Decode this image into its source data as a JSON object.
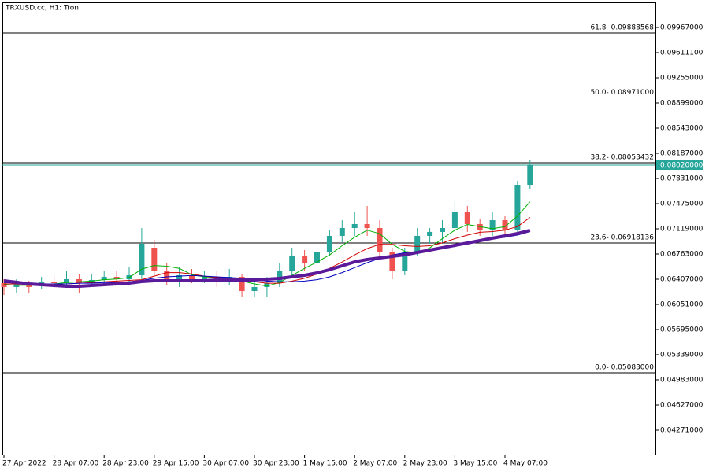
{
  "chart_data": {
    "type": "candlestick",
    "title": "TRXUSD.cc, H1:  Tron",
    "up_color": "#26a69a",
    "down_color": "#ef5350",
    "categories": [
      "27 Apr 2022",
      null,
      null,
      null,
      "28 Apr 07:00",
      null,
      null,
      null,
      "28 Apr 23:00",
      null,
      null,
      null,
      "29 Apr 15:00",
      null,
      null,
      null,
      "30 Apr 07:00",
      null,
      null,
      null,
      "30 Apr 23:00",
      null,
      null,
      null,
      "1 May 15:00",
      null,
      null,
      null,
      "2 May 07:00",
      null,
      null,
      null,
      "2 May 23:00",
      null,
      null,
      null,
      "3 May 15:00",
      null,
      null,
      null,
      "4 May 07:00",
      null,
      null
    ],
    "open": [
      0.06351,
      0.06296,
      0.06329,
      0.06318,
      0.06374,
      0.06351,
      0.06407,
      0.06351,
      0.06396,
      0.0644,
      0.06407,
      0.06463,
      0.06852,
      0.06518,
      0.06407,
      0.06463,
      0.06407,
      0.0644,
      0.06407,
      0.0644,
      0.0624,
      0.06296,
      0.06351,
      0.06518,
      0.06741,
      0.0663,
      0.06796,
      0.07019,
      0.0713,
      0.07186,
      0.0713,
      0.06796,
      0.06518,
      0.06796,
      0.07019,
      0.07075,
      0.0713,
      0.07353,
      0.07186,
      0.07108,
      0.07241,
      0.07108,
      0.07742
    ],
    "high": [
      0.06407,
      0.06407,
      0.06385,
      0.0644,
      0.06463,
      0.06518,
      0.06485,
      0.06485,
      0.06518,
      0.06518,
      0.06574,
      0.0713,
      0.06963,
      0.0663,
      0.06574,
      0.06552,
      0.06518,
      0.06518,
      0.06552,
      0.06485,
      0.06407,
      0.0644,
      0.0663,
      0.06852,
      0.06819,
      0.06908,
      0.07108,
      0.07241,
      0.07353,
      0.07442,
      0.07241,
      0.06852,
      0.06852,
      0.0713,
      0.0713,
      0.07241,
      0.0752,
      0.07442,
      0.07264,
      0.07353,
      0.07297,
      0.07798,
      0.08098
    ],
    "low": [
      0.06185,
      0.06218,
      0.06218,
      0.06262,
      0.06285,
      0.06296,
      0.06218,
      0.06329,
      0.06351,
      0.06351,
      0.06351,
      0.06407,
      0.06463,
      0.06329,
      0.06296,
      0.06351,
      0.06351,
      0.06296,
      0.06329,
      0.06151,
      0.06151,
      0.06151,
      0.06296,
      0.06463,
      0.06518,
      0.06596,
      0.06741,
      0.0693,
      0.07019,
      0.07019,
      0.06685,
      0.06407,
      0.06463,
      0.06741,
      0.06908,
      0.06908,
      0.07075,
      0.07075,
      0.07019,
      0.07019,
      0.07019,
      0.07075,
      0.07686
    ],
    "close": [
      0.06296,
      0.06351,
      0.06296,
      0.06374,
      0.06351,
      0.06407,
      0.06351,
      0.06396,
      0.0644,
      0.06407,
      0.06463,
      0.06908,
      0.06518,
      0.06407,
      0.06463,
      0.06407,
      0.0644,
      0.06407,
      0.0644,
      0.0624,
      0.06296,
      0.06351,
      0.06518,
      0.06741,
      0.0663,
      0.06796,
      0.07019,
      0.0713,
      0.07186,
      0.0713,
      0.06796,
      0.06518,
      0.06796,
      0.07019,
      0.07075,
      0.0713,
      0.07353,
      0.07186,
      0.07108,
      0.07241,
      0.07108,
      0.07742,
      0.0802
    ],
    "lines": [
      {
        "color": "#00b000",
        "width": 1,
        "values": [
          0.0633,
          0.0632,
          0.0632,
          0.0633,
          0.0634,
          0.0636,
          0.0637,
          0.0638,
          0.064,
          0.0641,
          0.0643,
          0.0655,
          0.066,
          0.0659,
          0.0656,
          0.0647,
          0.0644,
          0.0643,
          0.0642,
          0.0638,
          0.0634,
          0.0631,
          0.0636,
          0.0646,
          0.0656,
          0.0665,
          0.0675,
          0.0688,
          0.07,
          0.071,
          0.0705,
          0.069,
          0.068,
          0.0678,
          0.0685,
          0.0698,
          0.071,
          0.0718,
          0.0715,
          0.0712,
          0.0715,
          0.073,
          0.075
        ]
      },
      {
        "color": "#d00000",
        "width": 1,
        "values": [
          0.0634,
          0.0634,
          0.0633,
          0.0633,
          0.0633,
          0.0634,
          0.0635,
          0.0636,
          0.0637,
          0.0638,
          0.0639,
          0.064,
          0.0645,
          0.065,
          0.065,
          0.0648,
          0.0645,
          0.0643,
          0.0642,
          0.064,
          0.0637,
          0.0635,
          0.0635,
          0.0638,
          0.0642,
          0.0648,
          0.0656,
          0.0665,
          0.0675,
          0.0684,
          0.069,
          0.069,
          0.0688,
          0.0687,
          0.0688,
          0.0692,
          0.0698,
          0.0703,
          0.0707,
          0.0708,
          0.071,
          0.0715,
          0.0728
        ]
      },
      {
        "color": "#0000c0",
        "width": 1,
        "values": [
          0.0636,
          0.0635,
          0.0634,
          0.0634,
          0.0634,
          0.0634,
          0.0635,
          0.0635,
          0.0636,
          0.0636,
          0.0637,
          0.0639,
          0.0642,
          0.0644,
          0.0645,
          0.0646,
          0.0645,
          0.0644,
          0.0643,
          0.0642,
          0.064,
          0.0638,
          0.0637,
          0.0637,
          0.0638,
          0.064,
          0.0644,
          0.065,
          0.0657,
          0.0664,
          0.067,
          0.0675,
          0.0678,
          0.068,
          0.0682,
          0.0684,
          0.0687,
          0.0691,
          0.0695,
          0.0698,
          0.07,
          0.0703,
          0.0708
        ]
      },
      {
        "color": "#5a1a9a",
        "width": 4,
        "values": [
          0.06385,
          0.06363,
          0.0634,
          0.06329,
          0.06318,
          0.06307,
          0.06307,
          0.06318,
          0.06329,
          0.0634,
          0.06351,
          0.06374,
          0.06385,
          0.06385,
          0.06385,
          0.06385,
          0.06385,
          0.06396,
          0.06396,
          0.06396,
          0.06396,
          0.06407,
          0.06418,
          0.0644,
          0.06463,
          0.06496,
          0.06541,
          0.06596,
          0.06652,
          0.06685,
          0.06707,
          0.0673,
          0.06752,
          0.06785,
          0.06819,
          0.06852,
          0.06885,
          0.06919,
          0.06952,
          0.06986,
          0.07019,
          0.07052,
          0.07097
        ]
      }
    ],
    "levels": [
      {
        "value": 0.09888568,
        "label": "61.8- 0.09888568"
      },
      {
        "value": 0.08971,
        "label": "50.0- 0.08971000"
      },
      {
        "value": 0.08053432,
        "label": "38.2- 0.08053432"
      },
      {
        "value": 0.06918136,
        "label": "23.6- 0.06918136"
      },
      {
        "value": 0.05083,
        "label": "0.0- 0.05083000"
      }
    ],
    "current_price": {
      "value": 0.0802,
      "label": "0.08020000"
    },
    "ylim": [
      0.03926,
      0.10323
    ],
    "yticks": [
      {
        "value": 0.09967,
        "label": "0.09967000"
      },
      {
        "value": 0.096111,
        "label": "0.09611100"
      },
      {
        "value": 0.09255,
        "label": "0.09255000"
      },
      {
        "value": 0.08899,
        "label": "0.08899000"
      },
      {
        "value": 0.08543,
        "label": "0.08543000"
      },
      {
        "value": 0.08187,
        "label": "0.08187000"
      },
      {
        "value": 0.07831,
        "label": "0.07831000"
      },
      {
        "value": 0.07475,
        "label": "0.07475000"
      },
      {
        "value": 0.07119,
        "label": "0.07119000"
      },
      {
        "value": 0.06763,
        "label": "0.06763000"
      },
      {
        "value": 0.06407,
        "label": "0.06407000"
      },
      {
        "value": 0.06051,
        "label": "0.06051000"
      },
      {
        "value": 0.05695,
        "label": "0.05695000"
      },
      {
        "value": 0.05339,
        "label": "0.05339000"
      },
      {
        "value": 0.04983,
        "label": "0.04983000"
      },
      {
        "value": 0.04627,
        "label": "0.04627000"
      },
      {
        "value": 0.04271,
        "label": "0.04271000"
      }
    ]
  }
}
